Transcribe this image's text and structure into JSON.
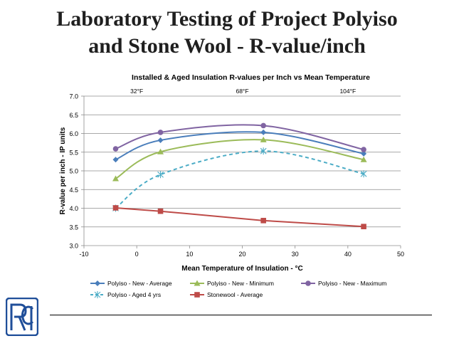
{
  "slide": {
    "title_line1": "Laboratory Testing of Project Polyiso",
    "title_line2": "and Stone Wool - R-value/inch",
    "logo_text": "RCI"
  },
  "colors": {
    "polyiso_avg": "#4a7ebb",
    "polyiso_min": "#9bbb59",
    "polyiso_max": "#8064a2",
    "polyiso_aged": "#4bacc6",
    "stonewool": "#be4b48",
    "logo": "#1f4e99"
  },
  "chart_data": {
    "type": "scatter",
    "title": "Installed & Aged Insulation R-values per Inch vs Mean Temperature",
    "xlabel": "Mean Temperature of Insulation - °C",
    "ylabel": "R-value per inch - IP units",
    "xlim": [
      -10,
      50
    ],
    "ylim": [
      3.0,
      7.0
    ],
    "xticks": [
      -10,
      0,
      10,
      20,
      30,
      40,
      50
    ],
    "yticks": [
      "3.0",
      "3.5",
      "4.0",
      "4.5",
      "5.0",
      "5.5",
      "6.0",
      "6.5",
      "7.0"
    ],
    "grid": "horizontal",
    "legend_position": "bottom",
    "annotations": [
      {
        "text": "32°F",
        "x": 0
      },
      {
        "text": "68°F",
        "x": 20
      },
      {
        "text": "104°F",
        "x": 40
      }
    ],
    "series": [
      {
        "name": "Polyiso - New - Average",
        "marker": "diamond",
        "line": "smooth",
        "color": "#4a7ebb",
        "x": [
          -4,
          4.5,
          24,
          43
        ],
        "y": [
          5.3,
          5.82,
          6.03,
          5.46
        ]
      },
      {
        "name": "Polyiso - New - Minimum",
        "marker": "triangle",
        "line": "smooth",
        "color": "#9bbb59",
        "x": [
          -4,
          4.5,
          24,
          43
        ],
        "y": [
          4.79,
          5.51,
          5.83,
          5.3
        ]
      },
      {
        "name": "Polyiso - New - Maximum",
        "marker": "circle",
        "line": "smooth",
        "color": "#8064a2",
        "x": [
          -4,
          4.5,
          24,
          43
        ],
        "y": [
          5.59,
          6.03,
          6.21,
          5.57
        ]
      },
      {
        "name": "Polyiso - Aged 4 yrs",
        "marker": "star",
        "line": "smooth-dashed",
        "color": "#4bacc6",
        "x": [
          -4,
          4.5,
          24,
          43
        ],
        "y": [
          4.0,
          4.9,
          5.53,
          4.92
        ]
      },
      {
        "name": "Stonewool - Average",
        "marker": "square",
        "line": "straight",
        "color": "#be4b48",
        "x": [
          -4,
          4.5,
          24,
          43
        ],
        "y": [
          4.01,
          3.92,
          3.67,
          3.51
        ]
      }
    ]
  }
}
